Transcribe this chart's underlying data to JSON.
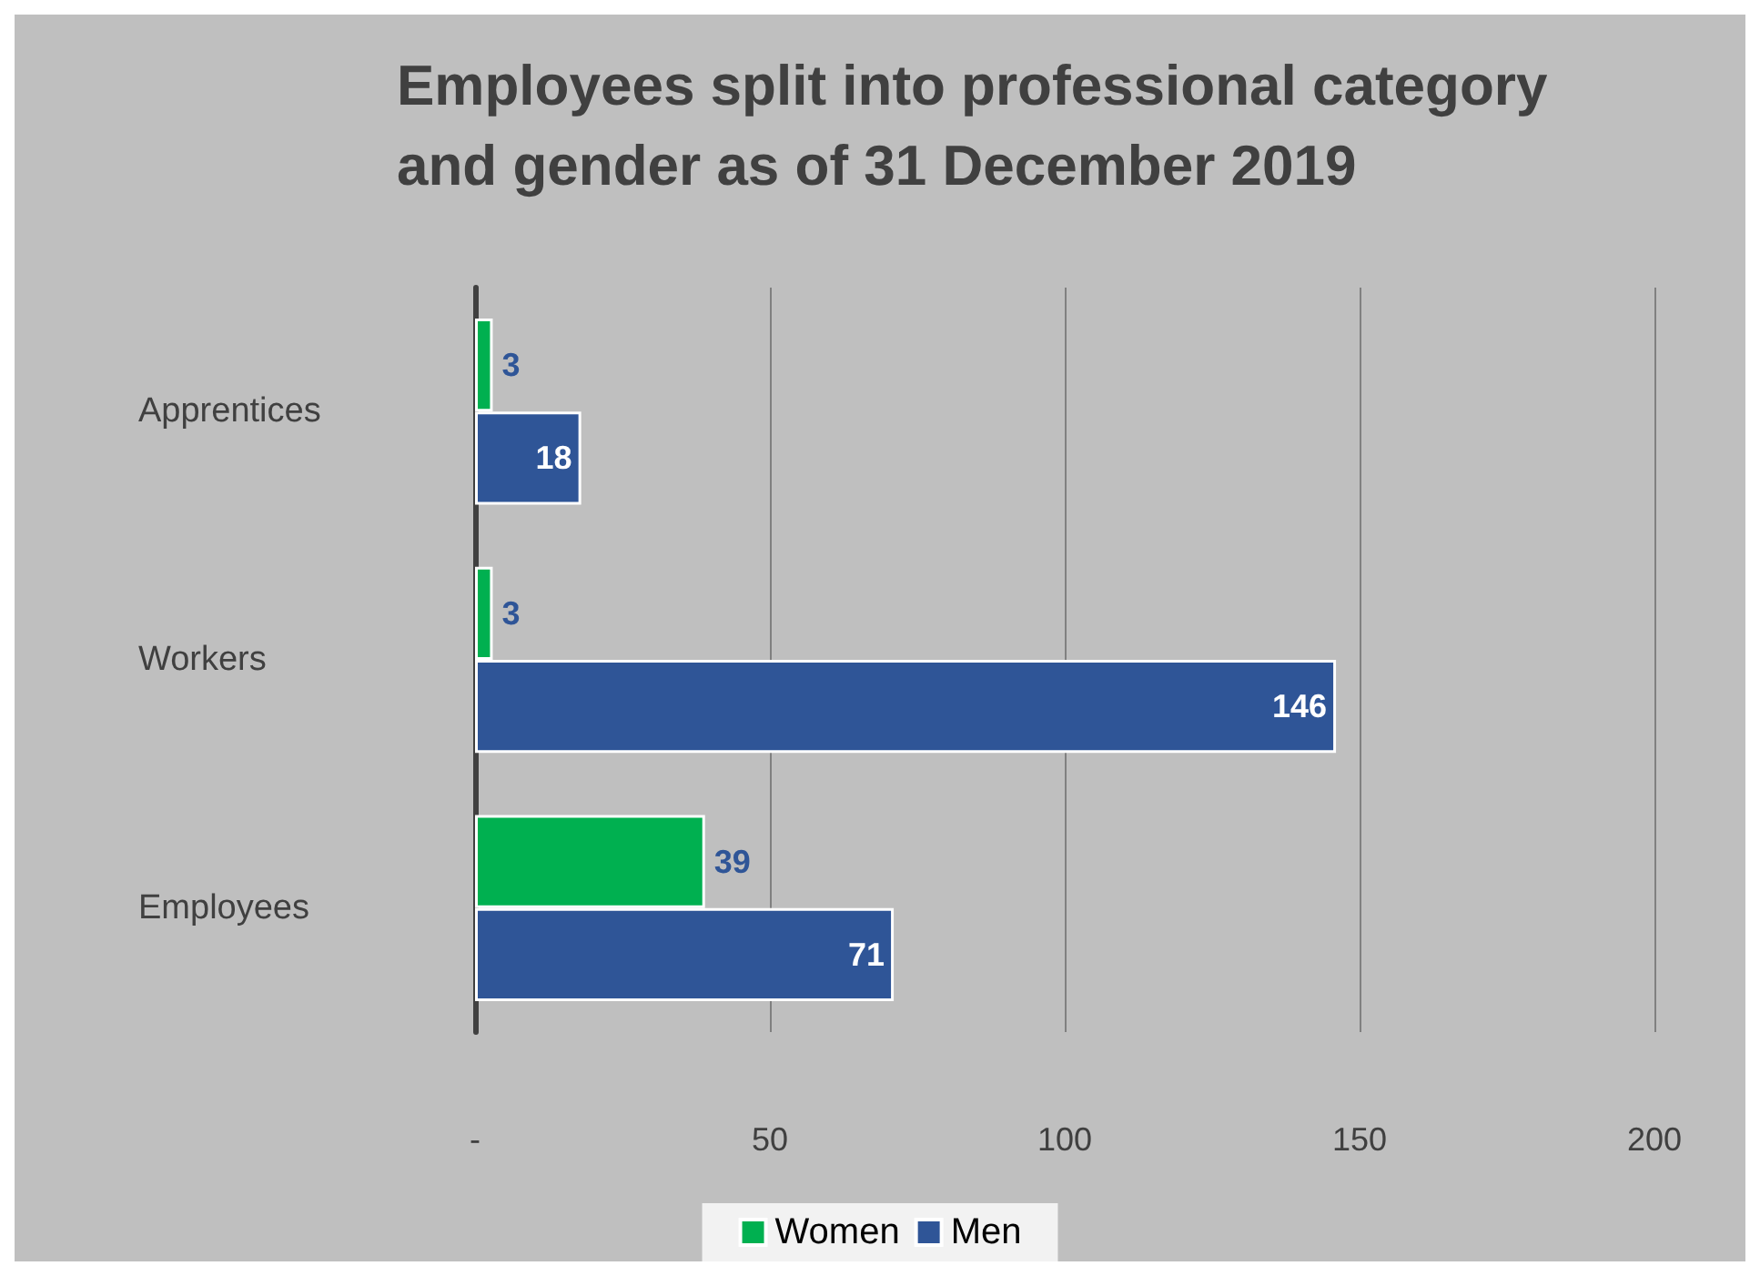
{
  "chart_data": {
    "type": "bar",
    "orientation": "horizontal",
    "title": "Employees split into professional category\nand gender as of 31 December 2019",
    "categories": [
      "Apprentices",
      "Workers",
      "Employees"
    ],
    "series": [
      {
        "name": "Women",
        "color": "#00b050",
        "values": [
          3,
          3,
          39
        ]
      },
      {
        "name": "Men",
        "color": "#2f5597",
        "values": [
          18,
          146,
          71
        ]
      }
    ],
    "xlim": [
      0,
      200
    ],
    "xticks": [
      {
        "value": 0,
        "label": "-"
      },
      50,
      100,
      150,
      200
    ],
    "grid": "x",
    "legend": "bottom",
    "data_labels": true
  }
}
